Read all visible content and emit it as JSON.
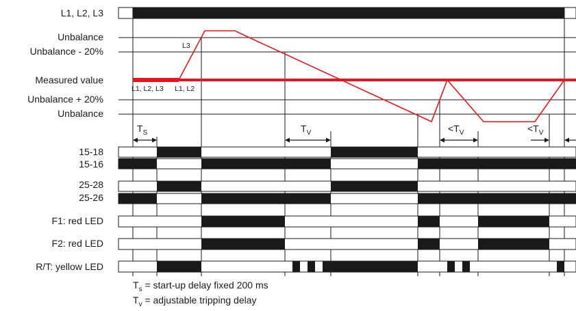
{
  "row_labels": {
    "phases": "L1, L2, L3",
    "unbalance_top": "Unbalance",
    "unbalance_minus": "Unbalance - 20%",
    "measured": "Measured value",
    "unbalance_plus": "Unbalance + 20%",
    "unbalance_bottom": "Unbalance",
    "c15_18": "15-18",
    "c15_16": "15-16",
    "c25_28": "25-28",
    "c25_26": "25-26",
    "f1": "F1: red LED",
    "f2": "F2: red LED",
    "rt": "R/T: yellow LED"
  },
  "annotations": {
    "l3": "L3",
    "seg_all": "L1, L2, L3",
    "seg_l1l2": "L1, L2"
  },
  "timing": {
    "ts_main": "T",
    "ts_sub": "S",
    "tv_main": "T",
    "tv_sub": "V",
    "tv_lt_main": "<T",
    "tv_lt_sub": "V"
  },
  "legend": {
    "ts_main": "T",
    "ts_sub": "s",
    "ts_text": " = start-up delay fixed 200 ms",
    "tv_main": "T",
    "tv_sub": "v",
    "tv_text": " = adjustable tripping delay"
  },
  "colors": {
    "signal": "#e8141e",
    "ink": "#1a1a1a"
  }
}
